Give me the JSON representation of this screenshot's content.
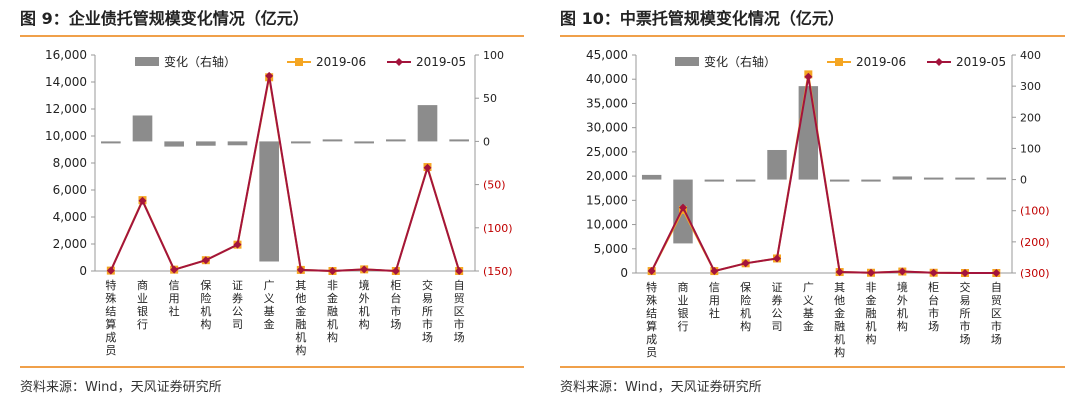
{
  "panels": [
    {
      "title": "图 9：企业债托管规模变化情况（亿元）",
      "source": "资料来源：Wind，天风证券研究所",
      "chart_data": {
        "type": "bar+line",
        "categories": [
          "特殊结算成员",
          "商业银行",
          "信用社",
          "保险机构",
          "证券公司",
          "广义基金",
          "其他金融机构",
          "非金融机构",
          "境外机构",
          "柜台市场",
          "交易所市场",
          "自贸区市场"
        ],
        "legend": [
          "变化（右轴）",
          "2019-06",
          "2019-05"
        ],
        "series": [
          {
            "name": "变化（右轴）",
            "axis": "right",
            "values": [
              -1.5,
              30,
              -6,
              -5,
              -4.5,
              -139,
              -0.5,
              0,
              -0.5,
              0,
              42,
              0
            ]
          },
          {
            "name": "2019-06",
            "axis": "left",
            "values": [
              30,
              5250,
              100,
              800,
              1950,
              14350,
              80,
              0,
              120,
              0,
              7700,
              0
            ]
          },
          {
            "name": "2019-05",
            "axis": "left",
            "values": [
              30,
              5200,
              100,
              800,
              1950,
              14450,
              80,
              0,
              120,
              0,
              7650,
              0
            ]
          }
        ],
        "yleft": {
          "min": 0,
          "max": 16000,
          "step": 2000,
          "ticks": [
            "0",
            "2,000",
            "4,000",
            "6,000",
            "8,000",
            "10,000",
            "12,000",
            "14,000",
            "16,000"
          ]
        },
        "yright": {
          "min": -150,
          "max": 100,
          "ticks": [
            "100",
            "50",
            "0",
            "(50)",
            "(100)",
            "(150)"
          ],
          "tick_values": [
            100,
            50,
            0,
            -50,
            -100,
            -150
          ]
        },
        "colors": {
          "bar": "#8c8c8c",
          "line_jun": "#f5a623",
          "line_may": "#a3143c",
          "neg_tick": "#c00000"
        }
      }
    },
    {
      "title": "图 10：中票托管规模变化情况（亿元）",
      "source": "资料来源：Wind，天风证券研究所",
      "chart_data": {
        "type": "bar+line",
        "categories": [
          "特殊结算成员",
          "商业银行",
          "信用社",
          "保险机构",
          "证券公司",
          "广义基金",
          "其他金融机构",
          "非金融机构",
          "境外机构",
          "柜台市场",
          "交易所市场",
          "自贸区市场"
        ],
        "legend": [
          "变化（右轴）",
          "2019-06",
          "2019-05"
        ],
        "series": [
          {
            "name": "变化（右轴）",
            "axis": "right",
            "values": [
              15,
              -205,
              -3,
              -5,
              95,
              300,
              -2,
              -1,
              10,
              0,
              0,
              0
            ]
          },
          {
            "name": "2019-06",
            "axis": "left",
            "values": [
              400,
              13000,
              400,
              2000,
              3000,
              41000,
              200,
              50,
              300,
              50,
              0,
              0
            ]
          },
          {
            "name": "2019-05",
            "axis": "left",
            "values": [
              400,
              13500,
              400,
              2000,
              3000,
              40500,
              200,
              50,
              300,
              50,
              0,
              0
            ]
          }
        ],
        "yleft": {
          "min": 0,
          "max": 45000,
          "step": 5000,
          "ticks": [
            "0",
            "5,000",
            "10,000",
            "15,000",
            "20,000",
            "25,000",
            "30,000",
            "35,000",
            "40,000",
            "45,000"
          ]
        },
        "yright": {
          "min": -300,
          "max": 400,
          "ticks": [
            "400",
            "300",
            "200",
            "100",
            "0",
            "(100)",
            "(200)",
            "(300)"
          ],
          "tick_values": [
            400,
            300,
            200,
            100,
            0,
            -100,
            -200,
            -300
          ]
        },
        "colors": {
          "bar": "#8c8c8c",
          "line_jun": "#f5a623",
          "line_may": "#a3143c",
          "neg_tick": "#c00000"
        }
      }
    }
  ]
}
